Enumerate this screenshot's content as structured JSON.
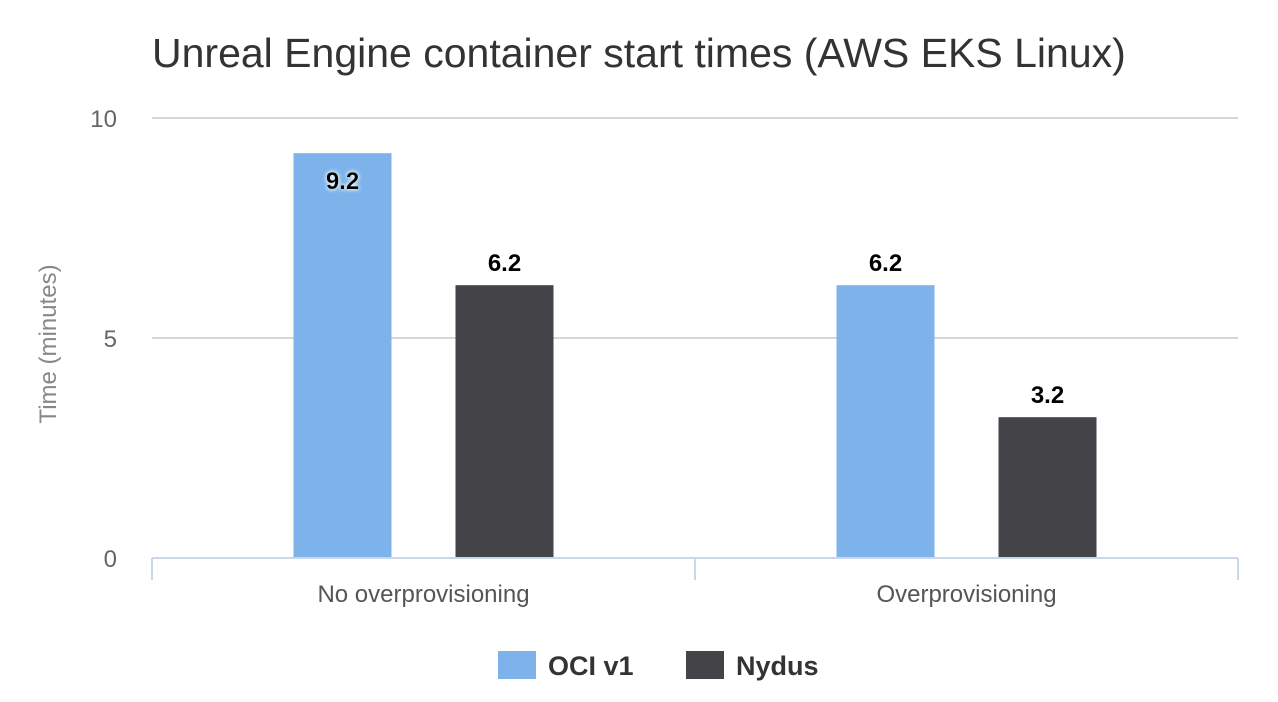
{
  "chart_data": {
    "type": "bar",
    "title": "Unreal Engine container start times (AWS EKS Linux)",
    "xlabel": "",
    "ylabel": "Time (minutes)",
    "ylim": [
      0,
      10
    ],
    "yticks": [
      "0",
      "5",
      "10"
    ],
    "grid": true,
    "legend_position": "bottom-center",
    "categories": [
      "No overprovisioning",
      "Overprovisioning"
    ],
    "series": [
      {
        "name": "OCI v1",
        "color": "#7db3ea",
        "values": [
          9.2,
          6.2
        ],
        "labels": [
          "9.2",
          "6.2"
        ]
      },
      {
        "name": "Nydus",
        "color": "#434348",
        "values": [
          6.2,
          3.2
        ],
        "labels": [
          "6.2",
          "3.2"
        ]
      }
    ]
  }
}
